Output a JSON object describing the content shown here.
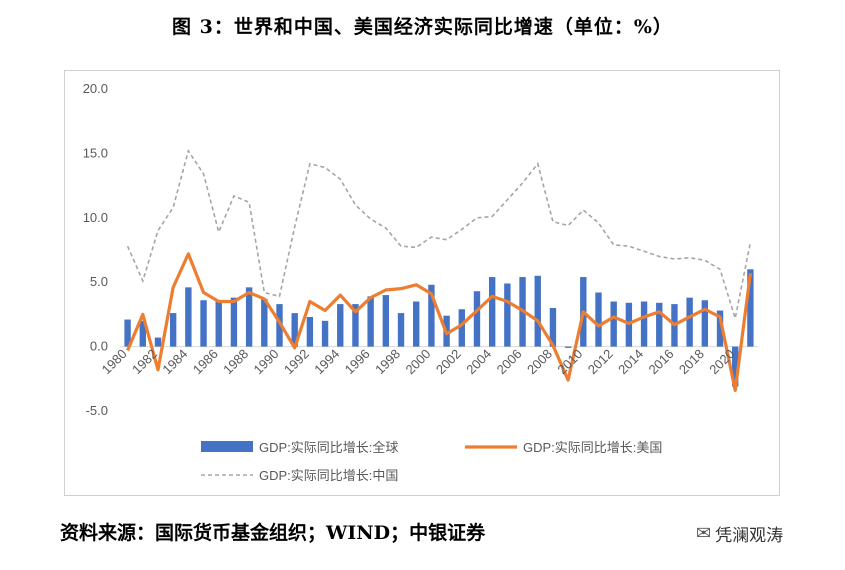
{
  "title": "图 3：世界和中国、美国经济实际同比增速（单位：%）",
  "source": "资料来源：国际货币基金组织；WIND；中银证券",
  "watermark": {
    "text": "凭澜观涛",
    "icon": "wechat-icon"
  },
  "chart_data": {
    "type": "bar",
    "title": "",
    "xlabel": "",
    "ylabel": "",
    "ylim": [
      -5,
      20
    ],
    "yticks": [
      "20.0",
      "15.0",
      "10.0",
      "5.0",
      "0.0",
      "-5.0"
    ],
    "grid": false,
    "legend_position": "bottom",
    "x": [
      1980,
      1981,
      1982,
      1983,
      1984,
      1985,
      1986,
      1987,
      1988,
      1989,
      1990,
      1991,
      1992,
      1993,
      1994,
      1995,
      1996,
      1997,
      1998,
      1999,
      2000,
      2001,
      2002,
      2003,
      2004,
      2005,
      2006,
      2007,
      2008,
      2009,
      2010,
      2011,
      2012,
      2013,
      2014,
      2015,
      2016,
      2017,
      2018,
      2019,
      2020,
      2021
    ],
    "xtick_labels": [
      "1980",
      "1982",
      "1984",
      "1986",
      "1988",
      "1990",
      "1992",
      "1994",
      "1996",
      "1998",
      "2000",
      "2002",
      "2004",
      "2006",
      "2008",
      "2010",
      "2012",
      "2014",
      "2016",
      "2018",
      "2020"
    ],
    "series": [
      {
        "name": "GDP:实际同比增长:全球",
        "type": "bar",
        "color": "#4472c4",
        "values": [
          2.1,
          2.0,
          0.7,
          2.6,
          4.6,
          3.6,
          3.5,
          3.8,
          4.6,
          3.7,
          3.3,
          2.6,
          2.3,
          2.0,
          3.3,
          3.3,
          3.9,
          4.0,
          2.6,
          3.5,
          4.8,
          2.4,
          2.9,
          4.3,
          5.4,
          4.9,
          5.4,
          5.5,
          3.0,
          -0.1,
          5.4,
          4.2,
          3.5,
          3.4,
          3.5,
          3.4,
          3.3,
          3.8,
          3.6,
          2.8,
          -3.1,
          6.0
        ]
      },
      {
        "name": "GDP:实际同比增长:美国",
        "type": "line",
        "color": "#ed7d31",
        "values": [
          -0.3,
          2.5,
          -1.8,
          4.6,
          7.2,
          4.2,
          3.5,
          3.5,
          4.2,
          3.7,
          1.9,
          -0.1,
          3.5,
          2.8,
          4.0,
          2.7,
          3.8,
          4.4,
          4.5,
          4.8,
          4.1,
          1.0,
          1.7,
          2.8,
          3.9,
          3.5,
          2.8,
          2.0,
          0.1,
          -2.6,
          2.7,
          1.6,
          2.3,
          1.8,
          2.3,
          2.7,
          1.7,
          2.3,
          2.9,
          2.3,
          -3.4,
          5.7
        ]
      },
      {
        "name": "GDP:实际同比增长:中国",
        "type": "line-dashed",
        "color": "#a5a5a5",
        "values": [
          7.8,
          5.1,
          9.0,
          10.8,
          15.2,
          13.4,
          8.9,
          11.7,
          11.2,
          4.2,
          3.9,
          9.3,
          14.2,
          13.9,
          13.0,
          11.0,
          9.9,
          9.2,
          7.8,
          7.7,
          8.5,
          8.3,
          9.1,
          10.0,
          10.1,
          11.4,
          12.7,
          14.2,
          9.7,
          9.4,
          10.6,
          9.6,
          7.9,
          7.8,
          7.4,
          7.0,
          6.8,
          6.9,
          6.7,
          6.0,
          2.2,
          8.1
        ]
      }
    ]
  }
}
